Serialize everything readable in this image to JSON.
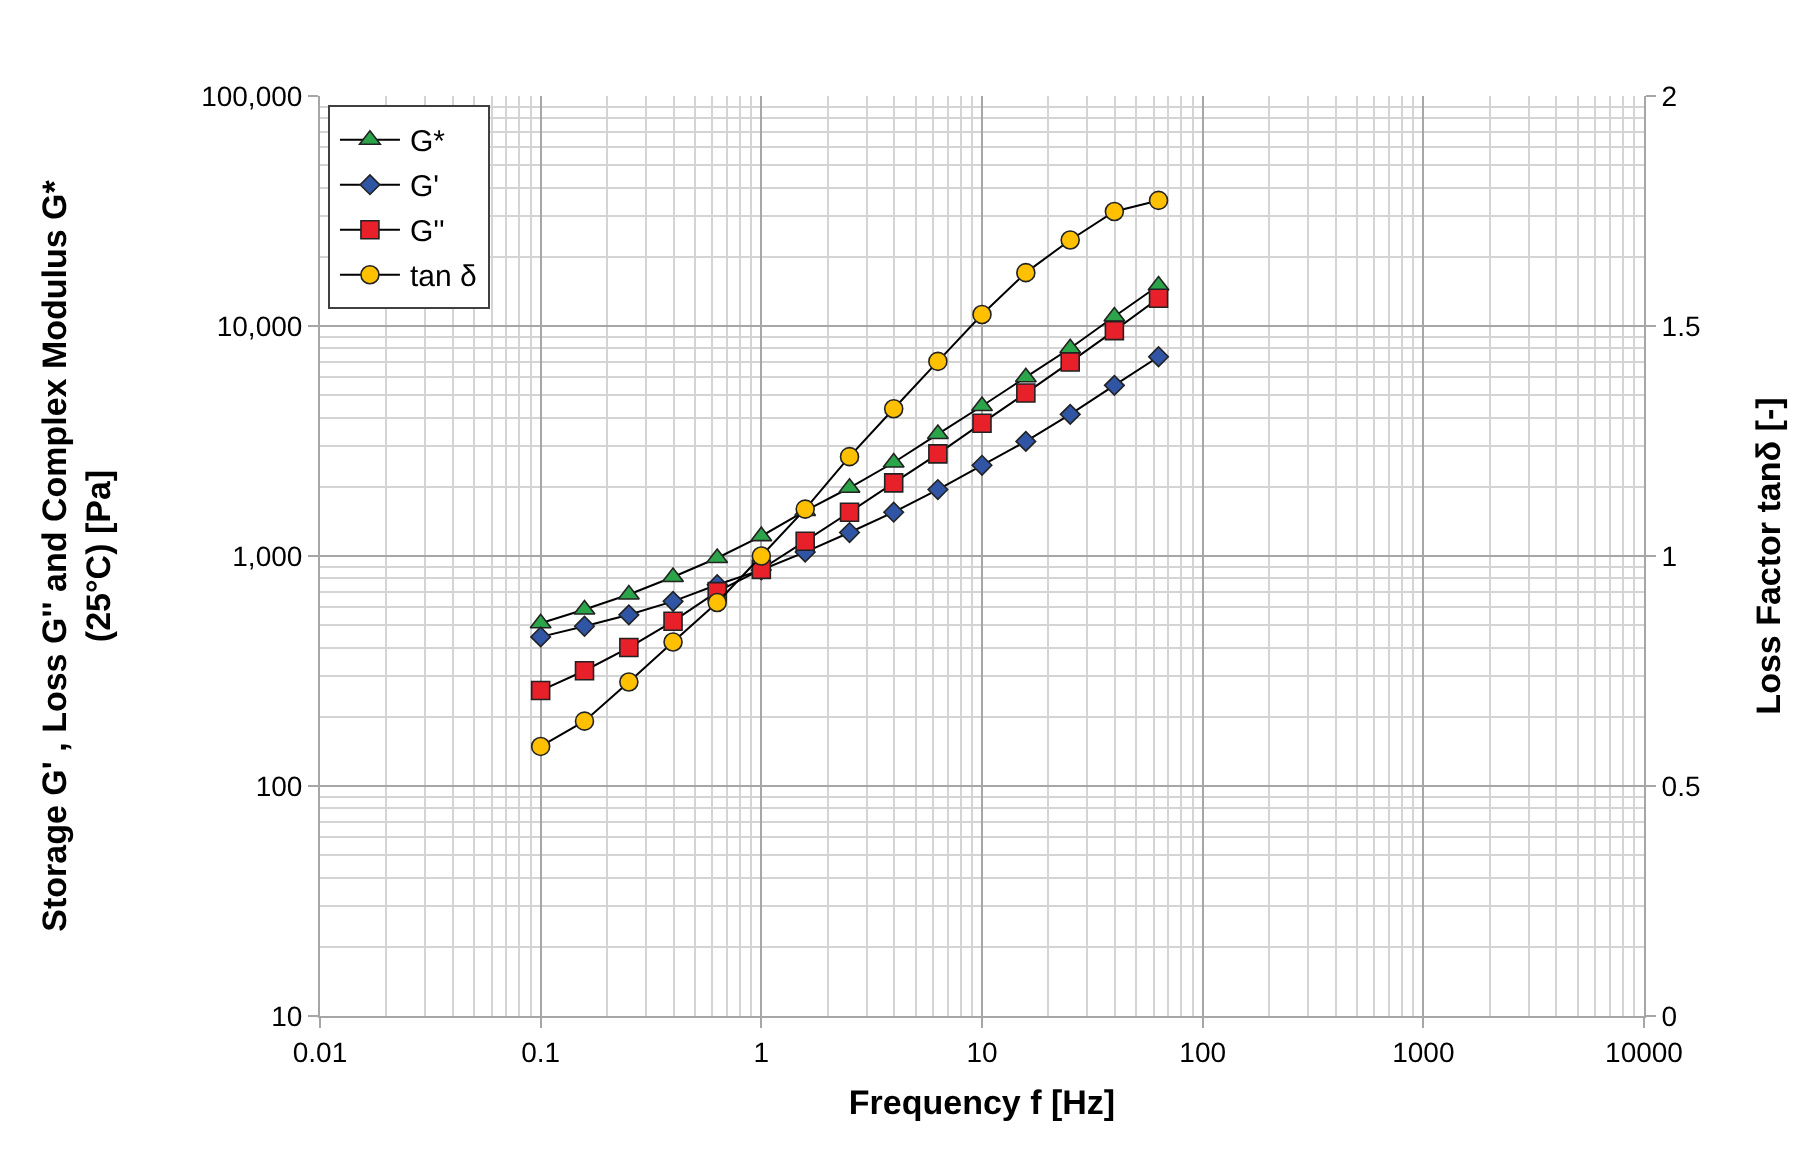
{
  "chart_data": {
    "type": "line",
    "xlabel": "Frequency f [Hz]",
    "ylabel": "Storage G' , Loss G'' and Complex Modulus G*\n(25°C) [Pa]",
    "y2label": "Loss Factor tanδ [-]",
    "x": [
      0.1,
      0.158,
      0.251,
      0.398,
      0.631,
      1,
      1.58,
      2.51,
      3.98,
      6.31,
      10,
      15.8,
      25.1,
      39.8,
      63.1
    ],
    "series": [
      {
        "name": "G*",
        "color": "#2ca44a",
        "marker": "triangle",
        "values": [
          510,
          585,
          680,
          810,
          980,
          1220,
          1570,
          1980,
          2550,
          3390,
          4490,
          5990,
          8000,
          11000,
          15000
        ]
      },
      {
        "name": "G'",
        "color": "#2f55a4",
        "marker": "diamond",
        "values": [
          445,
          495,
          555,
          635,
          750,
          870,
          1040,
          1265,
          1550,
          1945,
          2480,
          3150,
          4130,
          5520,
          7350
        ]
      },
      {
        "name": "G''",
        "color": "#e8202a",
        "marker": "square",
        "values": [
          260,
          317,
          400,
          520,
          700,
          875,
          1160,
          1550,
          2080,
          2780,
          3780,
          5110,
          6970,
          9550,
          13200
        ]
      },
      {
        "name": "tan δ",
        "color": "#ffc000",
        "marker": "circle",
        "axis": "y2",
        "values": [
          0.586,
          0.641,
          0.726,
          0.813,
          0.899,
          1.0,
          1.102,
          1.216,
          1.32,
          1.423,
          1.525,
          1.616,
          1.687,
          1.749,
          1.773
        ]
      }
    ],
    "log": "xy",
    "xlim": [
      0.01,
      10000
    ],
    "xticks": [
      0.01,
      0.1,
      1,
      10,
      100,
      1000,
      10000
    ],
    "ylim": [
      10,
      100000
    ],
    "yticks": [
      10,
      100,
      {
        "value": 1000,
        "label": "1,000"
      },
      {
        "value": 10000,
        "label": "10,000"
      },
      {
        "value": 100000,
        "label": "100,000"
      }
    ],
    "y2lim": [
      0,
      2
    ],
    "y2ticks": [
      0,
      0.5,
      1,
      1.5,
      2
    ],
    "grid": true,
    "legend": "top left",
    "line_style": "solid"
  }
}
